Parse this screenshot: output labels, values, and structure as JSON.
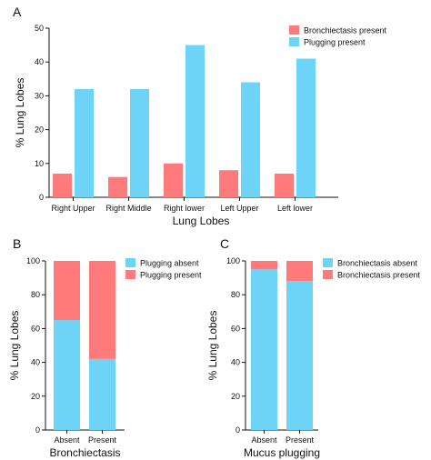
{
  "colors": {
    "bronchiectasis": "#FF7B7B",
    "plugging": "#6DD3F7",
    "axis": "#111111"
  },
  "chart_data": [
    {
      "panel": "A",
      "type": "bar",
      "categories": [
        "Right Upper",
        "Right Middle",
        "Right lower",
        "Left Upper",
        "Left lower"
      ],
      "series": [
        {
          "name": "Bronchiectasis present",
          "color": "#FF7B7B",
          "values": [
            7,
            6,
            10,
            8,
            7
          ]
        },
        {
          "name": "Plugging present",
          "color": "#6DD3F7",
          "values": [
            32,
            32,
            45,
            34,
            41
          ]
        }
      ],
      "xlabel": "Lung Lobes",
      "ylabel": "% Lung Lobes",
      "ylim": [
        0,
        50
      ],
      "yticks": [
        0,
        10,
        20,
        30,
        40,
        50
      ],
      "legend": "top-right",
      "grid": false
    },
    {
      "panel": "B",
      "type": "bar",
      "stacked": true,
      "categories": [
        "Absent",
        "Present"
      ],
      "series": [
        {
          "name": "Plugging absent",
          "color": "#6DD3F7",
          "values": [
            65,
            42
          ]
        },
        {
          "name": "Plugging present",
          "color": "#FF7B7B",
          "values": [
            35,
            58
          ]
        }
      ],
      "xlabel": "Bronchiectasis",
      "ylabel": "% Lung Lobes",
      "ylim": [
        0,
        100
      ],
      "yticks": [
        0,
        20,
        40,
        60,
        80,
        100
      ],
      "legend": "top-right",
      "grid": false
    },
    {
      "panel": "C",
      "type": "bar",
      "stacked": true,
      "categories": [
        "Absent",
        "Present"
      ],
      "series": [
        {
          "name": "Bronchiectasis absent",
          "color": "#6DD3F7",
          "values": [
            95,
            88
          ]
        },
        {
          "name": "Bronchiectasis present",
          "color": "#FF7B7B",
          "values": [
            5,
            12
          ]
        }
      ],
      "xlabel": "Mucus plugging",
      "ylabel": "% Lung Lobes",
      "ylim": [
        0,
        100
      ],
      "yticks": [
        0,
        20,
        40,
        60,
        80,
        100
      ],
      "legend": "top-right",
      "grid": false
    }
  ]
}
